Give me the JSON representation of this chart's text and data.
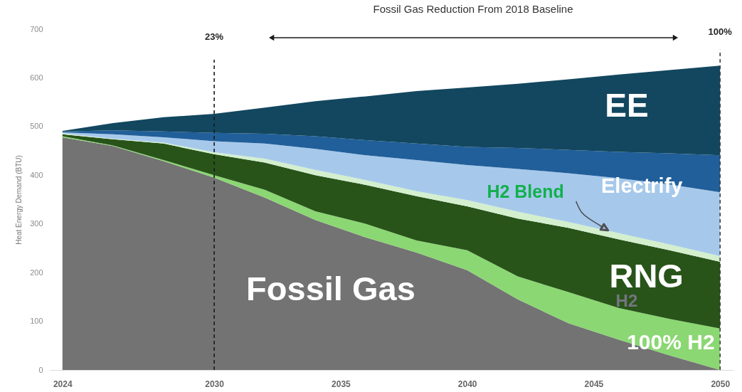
{
  "chart_data": {
    "type": "area",
    "stacked": true,
    "title": "Fossil Gas Reduction From 2018 Baseline",
    "ylabel": "Heat Energy Demand (BTU)",
    "x": [
      2024,
      2026,
      2028,
      2030,
      2032,
      2034,
      2036,
      2038,
      2040,
      2042,
      2044,
      2046,
      2048,
      2050
    ],
    "xlim": [
      2023.5,
      2050.5
    ],
    "xticks": [
      2024,
      2030,
      2035,
      2040,
      2045,
      2050
    ],
    "ylim": [
      0,
      700
    ],
    "yticks": [
      0,
      100,
      200,
      300,
      400,
      500,
      600,
      700
    ],
    "series": [
      {
        "name": "Fossil Gas",
        "color": "#737373",
        "values": [
          478,
          460,
          429,
          395,
          354,
          308,
          272,
          241,
          205,
          145,
          96,
          62,
          30,
          0
        ]
      },
      {
        "name": "100% H2",
        "color": "#8bd773",
        "values": [
          2,
          1,
          2,
          5,
          16,
          18,
          28,
          25,
          41,
          47,
          64,
          65,
          75,
          85
        ]
      },
      {
        "name": "RNG",
        "color": "#285419",
        "values": [
          4,
          13,
          34,
          43,
          56,
          74,
          80,
          91,
          90,
          119,
          132,
          141,
          141,
          137
        ]
      },
      {
        "name": "H2 Blend",
        "color": "#d3efce",
        "values": [
          2,
          1,
          2,
          4,
          8,
          11,
          10,
          10,
          13,
          14,
          12,
          13,
          12,
          12
        ]
      },
      {
        "name": "Electrify",
        "color": "#a6c9eb",
        "values": [
          2,
          9,
          11,
          23,
          31,
          43,
          51,
          64,
          72,
          88,
          100,
          113,
          123,
          131
        ]
      },
      {
        "color": "#215f9a",
        "values": [
          2,
          8,
          12,
          17,
          20,
          26,
          31,
          34,
          37,
          43,
          48,
          54,
          64,
          76
        ]
      },
      {
        "name": "EE",
        "color": "#12475f",
        "values": [
          1,
          15,
          29,
          39,
          54,
          72,
          90,
          108,
          122,
          132,
          145,
          159,
          171,
          184
        ]
      }
    ],
    "ref_lines": [
      {
        "axis": "x",
        "value": 2030,
        "color": "#1a1a1a",
        "line_style": "dashed"
      },
      {
        "axis": "x",
        "value": 2050,
        "color": "#404040",
        "line_style": "dashed"
      }
    ],
    "annotations": [
      "23%",
      "100%",
      "H2"
    ]
  }
}
